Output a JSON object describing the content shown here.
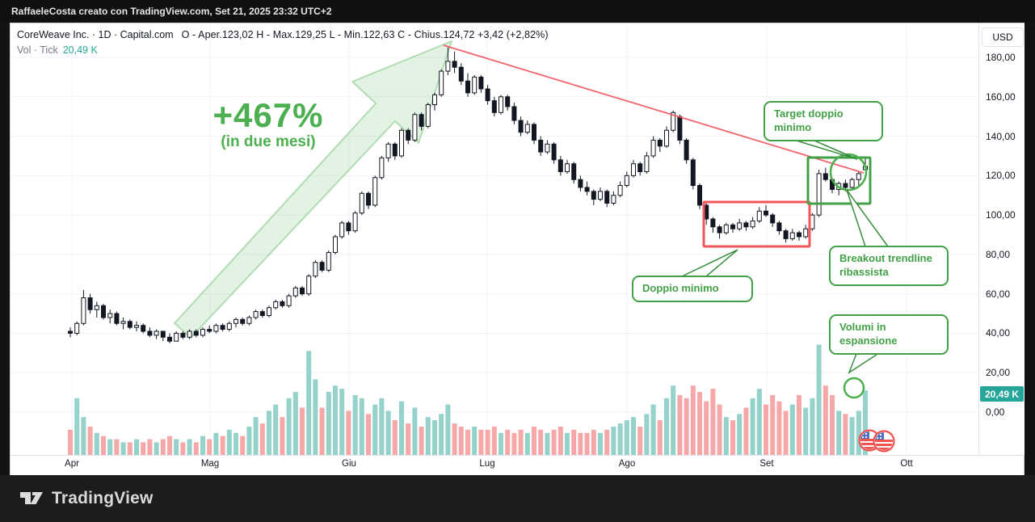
{
  "topbar": {
    "attribution": "RaffaeleCosta creato con TradingView.com, Set 21, 2025 23:32 UTC+2"
  },
  "header": {
    "symbol_line": "CoreWeave Inc. · 1D · Capital.com",
    "ohlc_line": "O - Aper.123,02  H - Max.129,25  L - Min.122,63  C - Chius.124,72  +3,42 (+2,82%)",
    "vol_label": "Vol · Tick",
    "vol_value": "20,49 K"
  },
  "price_axis": {
    "currency": "USD",
    "ticks": [
      "180,00",
      "160,00",
      "140,00",
      "120,00",
      "100,00",
      "80,00",
      "60,00",
      "40,00",
      "20,00",
      "0,00"
    ],
    "badge": "20,49 K"
  },
  "time_axis": {
    "labels": [
      "Apr",
      "Mag",
      "Giu",
      "Lug",
      "Ago",
      "Set",
      "Ott"
    ]
  },
  "annotations": {
    "gain": {
      "title": "+467%",
      "subtitle": "(in due mesi)"
    },
    "callout_target": {
      "text": "Target doppio minimo"
    },
    "callout_doppio": {
      "text": "Doppio minimo"
    },
    "callout_breakout": {
      "text": "Breakout trendline ribassista"
    },
    "callout_volumi": {
      "text": "Volumi in espansione"
    }
  },
  "footer": {
    "brand": "TradingView"
  },
  "colors": {
    "up_candle": "#ffffff",
    "down_candle": "#131722",
    "candle_stroke": "#131722",
    "vol_up": "#94d2cb",
    "vol_down": "#f6a8a8",
    "accent_green": "#43a047",
    "bright_green": "#4caf50",
    "accent_red": "#f23645",
    "badge_teal": "#26a69a",
    "grid": "#f0f3fa"
  },
  "chart_data": {
    "type": "candlestick",
    "symbol": "CoreWeave Inc.",
    "interval": "1D",
    "exchange": "Capital.com",
    "last_bar": {
      "open": 123.02,
      "high": 129.25,
      "low": 122.63,
      "close": 124.72,
      "change": 3.42,
      "change_pct": 2.82
    },
    "last_volume_k": 20.49,
    "y_axis": {
      "currency": "USD",
      "min": 0,
      "max": 185,
      "ticks": [
        180,
        160,
        140,
        120,
        100,
        80,
        60,
        40,
        20,
        0
      ]
    },
    "x_axis": {
      "months": [
        "Apr",
        "Mag",
        "Giu",
        "Lug",
        "Ago",
        "Set",
        "Ott"
      ]
    },
    "legend_annotations": [
      "+467% (in due mesi)",
      "Doppio minimo",
      "Target doppio minimo",
      "Breakout trendline ribassista",
      "Volumi in espansione"
    ],
    "candles": [
      [
        41,
        43,
        38,
        40,
        8
      ],
      [
        40,
        46,
        39,
        45,
        18
      ],
      [
        45,
        62,
        44,
        58,
        12
      ],
      [
        58,
        60,
        50,
        52,
        9
      ],
      [
        52,
        56,
        48,
        54,
        7
      ],
      [
        54,
        55,
        47,
        48,
        6
      ],
      [
        48,
        52,
        45,
        50,
        5
      ],
      [
        50,
        51,
        44,
        45,
        5
      ],
      [
        45,
        48,
        42,
        46,
        4
      ],
      [
        46,
        47,
        42,
        43,
        4
      ],
      [
        43,
        46,
        41,
        44,
        5
      ],
      [
        44,
        45,
        40,
        41,
        4
      ],
      [
        41,
        43,
        38,
        39,
        5
      ],
      [
        39,
        42,
        37,
        41,
        4
      ],
      [
        41,
        41,
        36,
        38,
        5
      ],
      [
        38,
        40,
        35,
        36,
        6
      ],
      [
        36,
        41,
        36,
        40,
        5
      ],
      [
        40,
        41,
        37,
        38,
        4
      ],
      [
        38,
        42,
        37,
        41,
        5
      ],
      [
        41,
        42,
        38,
        39,
        4
      ],
      [
        39,
        43,
        38,
        42,
        6
      ],
      [
        42,
        44,
        40,
        41,
        5
      ],
      [
        41,
        45,
        40,
        44,
        7
      ],
      [
        44,
        45,
        41,
        42,
        6
      ],
      [
        42,
        46,
        41,
        45,
        8
      ],
      [
        45,
        48,
        43,
        47,
        7
      ],
      [
        47,
        48,
        44,
        45,
        6
      ],
      [
        45,
        49,
        44,
        48,
        9
      ],
      [
        48,
        52,
        47,
        51,
        12
      ],
      [
        51,
        52,
        48,
        49,
        10
      ],
      [
        49,
        54,
        48,
        53,
        14
      ],
      [
        53,
        57,
        52,
        56,
        16
      ],
      [
        56,
        57,
        53,
        54,
        12
      ],
      [
        54,
        60,
        53,
        59,
        18
      ],
      [
        59,
        64,
        58,
        63,
        20
      ],
      [
        63,
        64,
        59,
        60,
        15
      ],
      [
        60,
        70,
        59,
        69,
        33
      ],
      [
        69,
        77,
        68,
        76,
        24
      ],
      [
        76,
        77,
        71,
        72,
        15
      ],
      [
        72,
        82,
        71,
        81,
        20
      ],
      [
        81,
        90,
        80,
        89,
        22
      ],
      [
        89,
        97,
        88,
        96,
        21
      ],
      [
        96,
        97,
        90,
        92,
        14
      ],
      [
        92,
        102,
        91,
        101,
        19
      ],
      [
        101,
        112,
        100,
        111,
        18
      ],
      [
        111,
        112,
        103,
        105,
        13
      ],
      [
        105,
        120,
        104,
        119,
        16
      ],
      [
        119,
        130,
        118,
        129,
        18
      ],
      [
        129,
        137,
        127,
        136,
        14
      ],
      [
        136,
        137,
        128,
        130,
        11
      ],
      [
        130,
        144,
        129,
        143,
        17
      ],
      [
        143,
        144,
        136,
        138,
        10
      ],
      [
        138,
        152,
        137,
        151,
        15
      ],
      [
        151,
        152,
        143,
        145,
        9
      ],
      [
        145,
        157,
        144,
        156,
        12
      ],
      [
        156,
        162,
        153,
        161,
        11
      ],
      [
        161,
        174,
        160,
        173,
        13
      ],
      [
        173,
        185,
        171,
        178,
        16
      ],
      [
        178,
        183,
        172,
        175,
        10
      ],
      [
        175,
        177,
        166,
        168,
        9
      ],
      [
        168,
        172,
        160,
        162,
        8
      ],
      [
        162,
        171,
        161,
        170,
        9
      ],
      [
        170,
        171,
        162,
        164,
        8
      ],
      [
        164,
        166,
        156,
        158,
        8
      ],
      [
        158,
        160,
        150,
        152,
        9
      ],
      [
        152,
        161,
        151,
        160,
        7
      ],
      [
        160,
        161,
        153,
        155,
        8
      ],
      [
        155,
        157,
        146,
        148,
        7
      ],
      [
        148,
        150,
        140,
        142,
        8
      ],
      [
        142,
        148,
        141,
        146,
        7
      ],
      [
        146,
        147,
        136,
        138,
        9
      ],
      [
        138,
        140,
        130,
        132,
        8
      ],
      [
        132,
        138,
        131,
        136,
        7
      ],
      [
        136,
        137,
        126,
        128,
        8
      ],
      [
        128,
        130,
        120,
        122,
        9
      ],
      [
        122,
        128,
        121,
        126,
        7
      ],
      [
        126,
        127,
        116,
        118,
        8
      ],
      [
        118,
        120,
        112,
        114,
        7
      ],
      [
        114,
        117,
        110,
        112,
        7
      ],
      [
        112,
        113,
        105,
        108,
        8
      ],
      [
        108,
        114,
        107,
        112,
        7
      ],
      [
        112,
        113,
        104,
        106,
        8
      ],
      [
        106,
        112,
        105,
        110,
        9
      ],
      [
        110,
        117,
        109,
        115,
        10
      ],
      [
        115,
        122,
        114,
        120,
        11
      ],
      [
        120,
        128,
        119,
        126,
        12
      ],
      [
        126,
        127,
        120,
        122,
        9
      ],
      [
        122,
        132,
        121,
        130,
        13
      ],
      [
        130,
        140,
        129,
        138,
        16
      ],
      [
        138,
        139,
        132,
        135,
        11
      ],
      [
        135,
        145,
        134,
        143,
        18
      ],
      [
        143,
        153,
        142,
        152,
        22
      ],
      [
        150,
        151,
        136,
        138,
        19
      ],
      [
        138,
        139,
        126,
        128,
        18
      ],
      [
        128,
        129,
        113,
        115,
        22
      ],
      [
        115,
        116,
        103,
        105,
        20
      ],
      [
        105,
        106,
        95,
        98,
        17
      ],
      [
        98,
        99,
        91,
        94,
        21
      ],
      [
        94,
        95,
        88,
        91,
        16
      ],
      [
        91,
        96,
        90,
        95,
        12
      ],
      [
        95,
        96,
        91,
        93,
        11
      ],
      [
        93,
        98,
        92,
        96,
        13
      ],
      [
        96,
        97,
        92,
        94,
        15
      ],
      [
        94,
        99,
        93,
        97,
        18
      ],
      [
        97,
        104,
        96,
        102,
        21
      ],
      [
        102,
        105,
        99,
        100,
        16
      ],
      [
        100,
        101,
        94,
        96,
        19
      ],
      [
        96,
        97,
        90,
        92,
        17
      ],
      [
        92,
        93,
        86,
        88,
        14
      ],
      [
        88,
        93,
        87,
        91,
        16
      ],
      [
        91,
        92,
        87,
        89,
        19
      ],
      [
        89,
        95,
        88,
        93,
        15
      ],
      [
        93,
        101,
        92,
        100,
        18
      ],
      [
        100,
        123,
        99,
        121,
        35
      ],
      [
        121,
        124,
        117,
        118,
        22
      ],
      [
        118,
        119,
        111,
        113,
        19
      ],
      [
        113,
        117,
        110,
        116,
        14
      ],
      [
        116,
        118,
        112,
        114,
        13
      ],
      [
        114,
        119,
        113,
        118,
        12
      ],
      [
        118,
        122,
        115,
        121,
        14
      ],
      [
        123.02,
        129.25,
        122.63,
        124.72,
        20.49
      ]
    ]
  }
}
